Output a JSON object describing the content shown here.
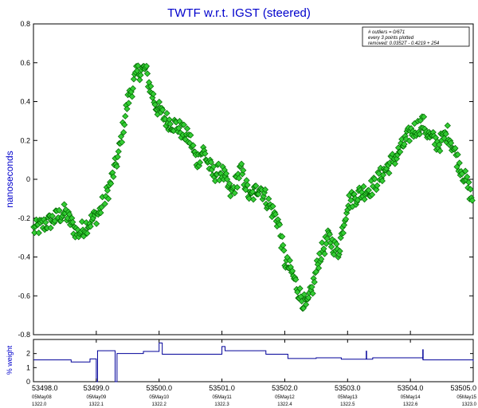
{
  "chart_data": [
    {
      "type": "scatter",
      "title": "TWTF  w.r.t. IGST (steered)",
      "ylabel": "nanoseconds",
      "xlim": [
        53498.0,
        53505.0
      ],
      "ylim": [
        -0.8,
        0.8
      ],
      "yticks": [
        "0.8",
        "0.6",
        "0.4",
        "0.2",
        "0",
        "-0.2",
        "-0.4",
        "-0.6",
        "-0.8"
      ],
      "ytick_values": [
        0.8,
        0.6,
        0.4,
        0.2,
        0,
        -0.2,
        -0.4,
        -0.6,
        -0.8
      ],
      "marker_color": "#33cc33",
      "marker_edge": "#006600",
      "legend": {
        "line1": "# outliers = 0/671",
        "line2": "every 3 points plotted",
        "line3": "removed: 0.0352T - 0.4219 + 254"
      },
      "series": [
        {
          "anchors": [
            [
              53498.0,
              -0.26
            ],
            [
              53498.25,
              -0.22
            ],
            [
              53498.5,
              -0.17
            ],
            [
              53498.7,
              -0.28
            ],
            [
              53498.9,
              -0.22
            ],
            [
              53499.05,
              -0.17
            ],
            [
              53499.2,
              -0.05
            ],
            [
              53499.35,
              0.12
            ],
            [
              53499.5,
              0.4
            ],
            [
              53499.65,
              0.55
            ],
            [
              53499.78,
              0.57
            ],
            [
              53499.85,
              0.48
            ],
            [
              53499.95,
              0.38
            ],
            [
              53500.1,
              0.31
            ],
            [
              53500.3,
              0.27
            ],
            [
              53500.5,
              0.2
            ],
            [
              53500.6,
              0.09
            ],
            [
              53500.7,
              0.15
            ],
            [
              53500.85,
              0.03
            ],
            [
              53501.0,
              0.04
            ],
            [
              53501.15,
              -0.08
            ],
            [
              53501.3,
              0.05
            ],
            [
              53501.45,
              -0.1
            ],
            [
              53501.6,
              -0.03
            ],
            [
              53501.75,
              -0.13
            ],
            [
              53501.9,
              -0.22
            ],
            [
              53502.0,
              -0.42
            ],
            [
              53502.1,
              -0.47
            ],
            [
              53502.25,
              -0.6
            ],
            [
              53502.35,
              -0.66
            ],
            [
              53502.45,
              -0.55
            ],
            [
              53502.55,
              -0.4
            ],
            [
              53502.7,
              -0.3
            ],
            [
              53502.85,
              -0.38
            ],
            [
              53503.0,
              -0.12
            ],
            [
              53503.2,
              -0.07
            ],
            [
              53503.4,
              -0.04
            ],
            [
              53503.6,
              0.05
            ],
            [
              53503.8,
              0.13
            ],
            [
              53504.0,
              0.24
            ],
            [
              53504.2,
              0.29
            ],
            [
              53504.3,
              0.22
            ],
            [
              53504.45,
              0.18
            ],
            [
              53504.6,
              0.24
            ],
            [
              53504.75,
              0.1
            ],
            [
              53504.9,
              -0.02
            ],
            [
              53505.0,
              -0.12
            ]
          ]
        }
      ]
    },
    {
      "type": "line",
      "ylabel": "% weight",
      "xlim": [
        53498.0,
        53505.0
      ],
      "ylim": [
        0,
        3
      ],
      "yticks": [
        "2",
        "1",
        "0"
      ],
      "ytick_values": [
        2,
        1,
        0
      ],
      "line_color": "#000099",
      "steps": [
        [
          53498.0,
          1.55
        ],
        [
          53498.6,
          1.4
        ],
        [
          53498.9,
          1.62
        ],
        [
          53499.0,
          0.0
        ],
        [
          53499.02,
          2.2
        ],
        [
          53499.3,
          0.0
        ],
        [
          53499.33,
          2.0
        ],
        [
          53499.75,
          2.15
        ],
        [
          53500.0,
          2.75
        ],
        [
          53500.05,
          1.95
        ],
        [
          53501.0,
          2.5
        ],
        [
          53501.05,
          2.2
        ],
        [
          53501.7,
          1.95
        ],
        [
          53502.05,
          1.65
        ],
        [
          53502.5,
          1.7
        ],
        [
          53502.9,
          1.6
        ],
        [
          53503.4,
          1.7
        ],
        [
          53504.2,
          1.55
        ],
        [
          53505.0,
          1.45
        ]
      ],
      "spikes": [
        [
          53503.3,
          2.2
        ],
        [
          53504.2,
          2.3
        ]
      ]
    }
  ],
  "xaxis": {
    "tick_values": [
      53498.0,
      53499.0,
      53500.0,
      53501.0,
      53502.0,
      53503.0,
      53504.0,
      53505.0
    ],
    "tick_labels": [
      "53498.0",
      "53499.0",
      "53500.0",
      "53501.0",
      "53502.0",
      "53503.0",
      "53504.0",
      "53505.0"
    ],
    "date_labels": [
      "05May08",
      "05May09",
      "05May10",
      "05May11",
      "05May12",
      "05May13",
      "05May14",
      "05May15"
    ],
    "gps_labels": [
      "1322.0",
      "1322.1",
      "1322.2",
      "1322.3",
      "1322.4",
      "1322.5",
      "1322.6",
      "1323.0"
    ]
  }
}
